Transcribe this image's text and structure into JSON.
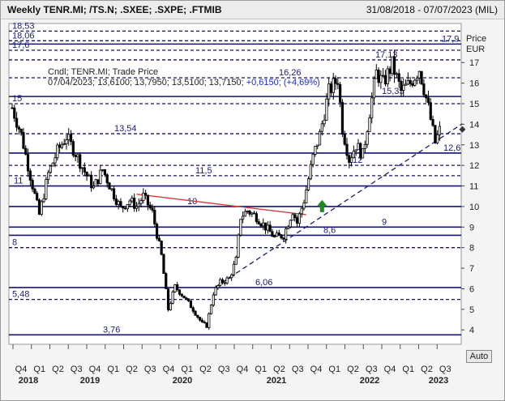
{
  "header": {
    "title": "Weekly TENR.MI; /TS.N; .SXEE; .SXPE; .FTMIB",
    "date_range": "31/08/2018 - 07/07/2023 (MIL)"
  },
  "legend": {
    "line1": "Cndl; TENR.MI; Trade Price",
    "date": "07/04/2023;",
    "ohlc": "13,6100; 13,7950; 13,5100; 13,7150;",
    "change": "+0,6150; (+4,69%)"
  },
  "axis": {
    "price_label": "Price",
    "currency_label": "EUR",
    "auto_button": "Auto"
  },
  "chart_data": {
    "type": "candlestick",
    "symbol": "TENR.MI",
    "interval": "weekly",
    "ylim": [
      3.3,
      18.9
    ],
    "y_ticks": [
      "4",
      "5",
      "6",
      "7",
      "8",
      "9",
      "10",
      "11",
      "12",
      "13",
      "14",
      "15",
      "16",
      "17"
    ],
    "x_quarters": [
      "Q4",
      "Q1",
      "Q2",
      "Q3",
      "Q4",
      "Q1",
      "Q2",
      "Q3",
      "Q4",
      "Q1",
      "Q2",
      "Q3",
      "Q4",
      "Q1",
      "Q2",
      "Q3",
      "Q4",
      "Q1",
      "Q2",
      "Q3",
      "Q4",
      "Q1",
      "Q2",
      "Q3"
    ],
    "x_years": [
      "2018",
      "2019",
      "2020",
      "2021",
      "2022",
      "2023"
    ],
    "price_path": [
      [
        0,
        14.8
      ],
      [
        4,
        13.5
      ],
      [
        8,
        11.5
      ],
      [
        12,
        9.6
      ],
      [
        16,
        11.6
      ],
      [
        20,
        12.7
      ],
      [
        24,
        13.4
      ],
      [
        28,
        12.6
      ],
      [
        32,
        11.7
      ],
      [
        36,
        10.9
      ],
      [
        40,
        11.8
      ],
      [
        44,
        10.8
      ],
      [
        48,
        9.9
      ],
      [
        52,
        10.3
      ],
      [
        55,
        10.0
      ],
      [
        58,
        10.5
      ],
      [
        62,
        9.7
      ],
      [
        66,
        7.6
      ],
      [
        69,
        5.0
      ],
      [
        72,
        6.1
      ],
      [
        76,
        5.6
      ],
      [
        80,
        5.0
      ],
      [
        84,
        4.3
      ],
      [
        86,
        4.2
      ],
      [
        89,
        5.8
      ],
      [
        92,
        6.3
      ],
      [
        96,
        6.5
      ],
      [
        99,
        7.4
      ],
      [
        101,
        9.5
      ],
      [
        104,
        9.8
      ],
      [
        108,
        9.5
      ],
      [
        112,
        9.0
      ],
      [
        116,
        8.5
      ],
      [
        120,
        8.6
      ],
      [
        124,
        9.8
      ],
      [
        126,
        9.2
      ],
      [
        129,
        10.3
      ],
      [
        133,
        12.4
      ],
      [
        136,
        13.5
      ],
      [
        140,
        15.6
      ],
      [
        144,
        16.2
      ],
      [
        146,
        13.8
      ],
      [
        149,
        12.3
      ],
      [
        152,
        13.0
      ],
      [
        155,
        12.5
      ],
      [
        158,
        14.6
      ],
      [
        161,
        16.5
      ],
      [
        164,
        16.0
      ],
      [
        168,
        16.9
      ],
      [
        172,
        15.6
      ],
      [
        176,
        16.0
      ],
      [
        180,
        16.7
      ],
      [
        184,
        14.8
      ],
      [
        187,
        13.1
      ],
      [
        189,
        13.7
      ]
    ],
    "horizontal_levels": [
      {
        "value": 18.53,
        "label": "18,53",
        "style": "dashed"
      },
      {
        "value": 18.06,
        "label": "18,06",
        "style": "dashed"
      },
      {
        "value": 17.9,
        "label": "17,9",
        "style": "solid"
      },
      {
        "value": 17.6,
        "label": "17,6",
        "style": "dashed"
      },
      {
        "value": 17.13,
        "label": "17,13",
        "style": "dashed"
      },
      {
        "value": 16.26,
        "label": "16,26",
        "style": "dashed"
      },
      {
        "value": 15.35,
        "label": "15,35",
        "style": "solid"
      },
      {
        "value": 15.0,
        "label": "15",
        "style": "dashed"
      },
      {
        "value": 13.54,
        "label": "13,54",
        "style": "dashed"
      },
      {
        "value": 12.6,
        "label": "12,6",
        "style": "solid"
      },
      {
        "value": 12.0,
        "label": "12",
        "style": "dashed"
      },
      {
        "value": 11.5,
        "label": "11,5",
        "style": "dashed"
      },
      {
        "value": 11.0,
        "label": "11",
        "style": "solid"
      },
      {
        "value": 10.0,
        "label": "10",
        "style": "solid"
      },
      {
        "value": 9.0,
        "label": "9",
        "style": "solid"
      },
      {
        "value": 8.6,
        "label": "8,6",
        "style": "solid"
      },
      {
        "value": 8.0,
        "label": "8",
        "style": "dashed"
      },
      {
        "value": 6.06,
        "label": "6,06",
        "style": "solid"
      },
      {
        "value": 5.48,
        "label": "5,48",
        "style": "dashed"
      },
      {
        "value": 3.76,
        "label": "3,76",
        "style": "solid"
      }
    ],
    "trendlines": [
      {
        "name": "descending-resistance",
        "color": "#d43a3a",
        "points": [
          [
            55,
            10.6
          ],
          [
            130,
            9.6
          ]
        ]
      },
      {
        "name": "rising-support",
        "color": "#1a1a7a",
        "points": [
          [
            90,
            6.1
          ],
          [
            189,
            13.3
          ]
        ]
      }
    ],
    "annotations": [
      {
        "type": "arrow-up",
        "color": "#1e8a1e",
        "at": [
          137,
          10.0
        ]
      },
      {
        "type": "marker",
        "color": "#333333",
        "at": [
          189,
          13.75
        ]
      }
    ],
    "grid": false
  }
}
